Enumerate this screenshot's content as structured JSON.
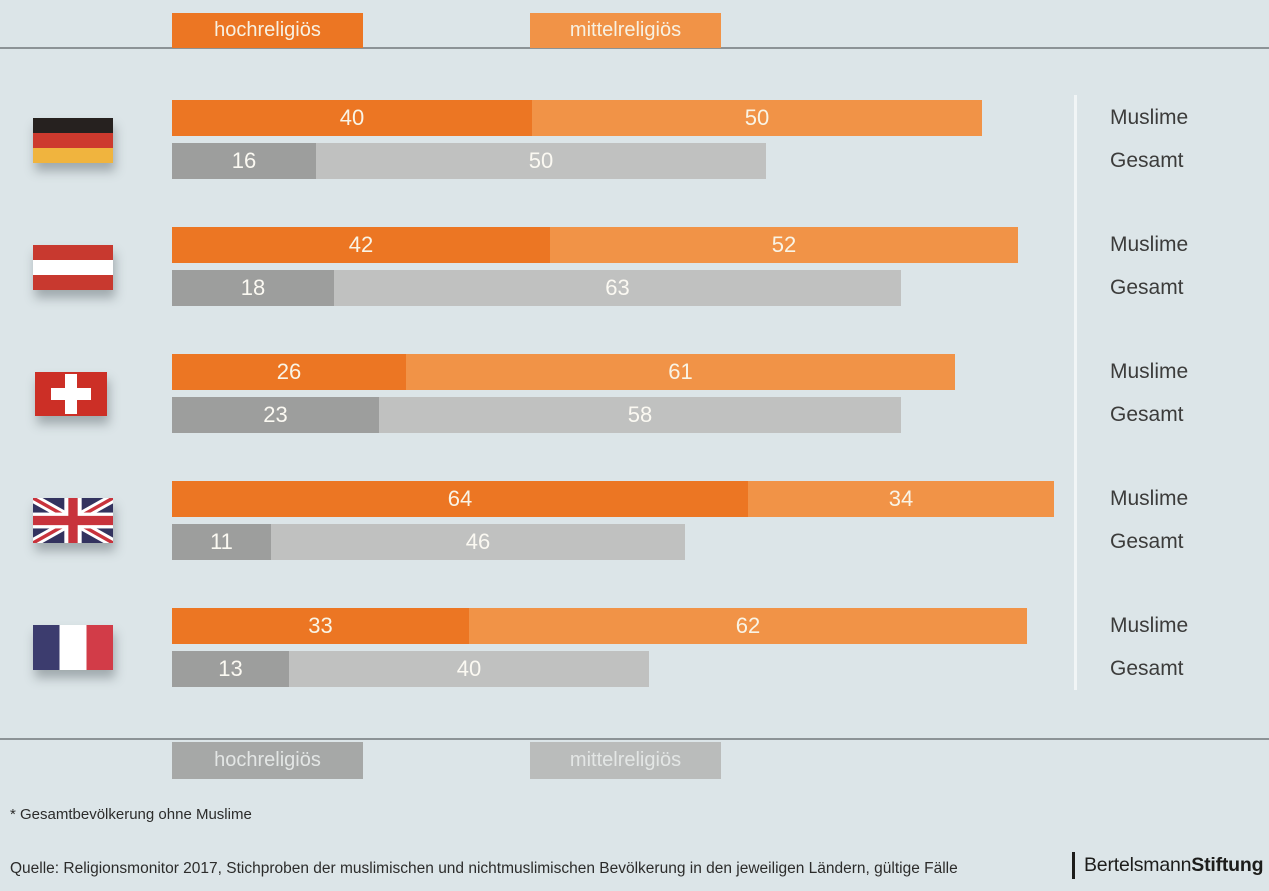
{
  "legend_top": {
    "hochreligioes": "hochreligiös",
    "mittelreligioes": "mittelreligiös"
  },
  "legend_bottom": {
    "hochreligioes": "hochreligiös",
    "mittelreligioes": "mittelreligiös"
  },
  "row_labels": {
    "muslime": "Muslime",
    "gesamt": "Gesamt"
  },
  "rows": [
    {
      "flag": "germany-flag",
      "muslime_hoch": 40,
      "muslime_mittel": 50,
      "gesamt_hoch": 16,
      "gesamt_mittel": 50
    },
    {
      "flag": "austria-flag",
      "muslime_hoch": 42,
      "muslime_mittel": 52,
      "gesamt_hoch": 18,
      "gesamt_mittel": 63
    },
    {
      "flag": "switzerland-flag",
      "muslime_hoch": 26,
      "muslime_mittel": 61,
      "gesamt_hoch": 23,
      "gesamt_mittel": 58
    },
    {
      "flag": "united-kingdom-flag",
      "muslime_hoch": 64,
      "muslime_mittel": 34,
      "gesamt_hoch": 11,
      "gesamt_mittel": 46
    },
    {
      "flag": "france-flag",
      "muslime_hoch": 33,
      "muslime_mittel": 62,
      "gesamt_hoch": 13,
      "gesamt_mittel": 40
    }
  ],
  "footnote": "* Gesamtbevölkerung ohne Muslime",
  "source": "Quelle: Religionsmonitor 2017, Stichproben der muslimischen und nichtmuslimischen Bevölkerung in den jeweiligen Ländern, gültige Fälle",
  "logo": {
    "name": "Bertelsmann",
    "suffix": "Stiftung"
  },
  "colors": {
    "background": "#dce5e8",
    "orange_dark": "#ec7623",
    "orange_light": "#f19347",
    "gray_dark": "#9d9e9d",
    "gray_light": "#c0c1c0",
    "rule": "#8c9396",
    "bar_value_text": "#f9f4e6",
    "label_text": "#3c3c3b"
  },
  "chart_data": {
    "type": "bar",
    "orientation": "horizontal-stacked",
    "unit": "percent",
    "categories": [
      "Deutschland",
      "Österreich",
      "Schweiz",
      "Großbritannien",
      "Frankreich"
    ],
    "group_labels": [
      "Muslime",
      "Gesamt"
    ],
    "legend": [
      "hochreligiös",
      "mittelreligiös"
    ],
    "legend_position": "top-and-bottom",
    "series": [
      {
        "name": "Muslime hochreligiös",
        "color": "#ec7623",
        "values": [
          40,
          42,
          26,
          64,
          33
        ]
      },
      {
        "name": "Muslime mittelreligiös",
        "color": "#f19347",
        "values": [
          50,
          52,
          61,
          34,
          62
        ]
      },
      {
        "name": "Gesamt hochreligiös",
        "color": "#9d9e9d",
        "values": [
          16,
          18,
          23,
          11,
          13
        ]
      },
      {
        "name": "Gesamt mittelreligiös",
        "color": "#c0c1c0",
        "values": [
          50,
          63,
          58,
          46,
          40
        ]
      }
    ],
    "xlim": [
      0,
      100
    ],
    "footnote": "* Gesamtbevölkerung ohne Muslime",
    "source": "Quelle: Religionsmonitor 2017, Stichproben der muslimischen und nichtmuslimischen Bevölkerung in den jeweiligen Ländern, gültige Fälle"
  }
}
